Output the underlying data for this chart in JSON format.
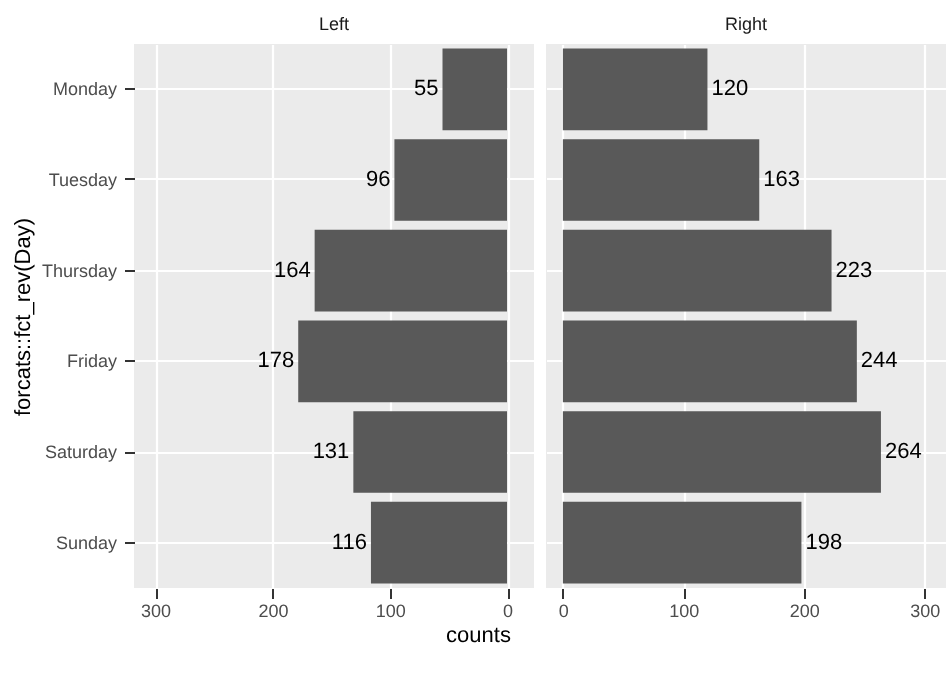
{
  "chart_data": [
    {
      "type": "bar",
      "orientation": "horizontal",
      "title": "Left",
      "ylabel": "forcats::fct_rev(Day)",
      "xlabel": "counts",
      "categories": [
        "Monday",
        "Tuesday",
        "Thursday",
        "Friday",
        "Saturday",
        "Sunday"
      ],
      "values": [
        55,
        96,
        164,
        178,
        131,
        116
      ],
      "color": "#595959",
      "xlim": [
        318,
        -23
      ],
      "xticks": [
        300,
        200,
        100,
        0
      ],
      "grid": true,
      "data_labels": true
    },
    {
      "type": "bar",
      "orientation": "horizontal",
      "title": "Right",
      "categories": [
        null,
        null,
        null,
        null,
        null,
        null
      ],
      "values": [
        120,
        163,
        223,
        244,
        264,
        198
      ],
      "color": "#595959",
      "xlim": [
        -14,
        318
      ],
      "xticks": [
        0,
        100,
        200,
        300
      ],
      "grid": true,
      "data_labels": true,
      "tick_labels": "x"
    }
  ]
}
